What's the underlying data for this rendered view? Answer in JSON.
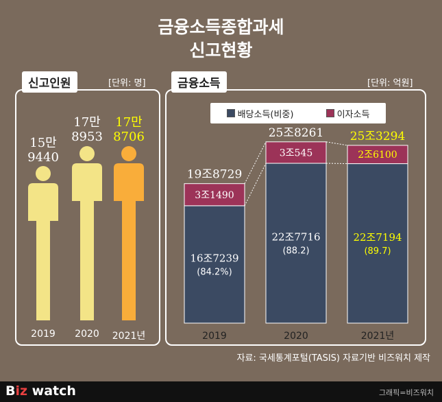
{
  "title": {
    "line1": "금융소득종합과세",
    "line2": "신고현황"
  },
  "left_panel": {
    "tag": "신고인원",
    "unit": "[단위: 명]",
    "people": [
      {
        "year": "2019",
        "value_line1": "15만",
        "value_line2": "9440",
        "color": "#f3e487",
        "text_color": "#ffffff"
      },
      {
        "year": "2020",
        "value_line1": "17만",
        "value_line2": "8953",
        "color": "#f3e487",
        "text_color": "#ffffff"
      },
      {
        "year": "2021년",
        "value_line1": "17만",
        "value_line2": "8706",
        "color": "#f9ad3a",
        "text_color": "#ffff00"
      }
    ]
  },
  "right_panel": {
    "tag": "금융소득",
    "unit": "[단위: 억원]",
    "legend": {
      "dividend": "배당소득(비중)",
      "interest": "이자소득"
    }
  },
  "colors": {
    "dividend": "#3b4a62",
    "interest": "#9c3358",
    "highlight": "#ffff00",
    "background": "#7a6a5c"
  },
  "chart_data": {
    "type": "bar",
    "stacked": true,
    "categories": [
      "2019",
      "2020",
      "2021년"
    ],
    "series": [
      {
        "name": "배당소득(비중)",
        "values": [
          167239,
          227716,
          227194
        ],
        "labels": [
          "16조7239",
          "22조7716",
          "22조7194"
        ],
        "shares": [
          "(84.2%)",
          "(88.2)",
          "(89.7)"
        ]
      },
      {
        "name": "이자소득",
        "values": [
          31490,
          30545,
          26100
        ],
        "labels": [
          "3조1490",
          "3조545",
          "2조6100"
        ]
      }
    ],
    "totals": [
      198729,
      258261,
      253294
    ],
    "total_labels": [
      "19조8729",
      "25조8261",
      "25조3294"
    ],
    "ylim": [
      0,
      260000
    ],
    "highlight_last": true
  },
  "caption": "자료: 국세통계포털(TASIS) 자료기반 비즈워치 제작",
  "footer": {
    "brand_b": "B",
    "brand_iz": "iz",
    "brand_watch": " watch",
    "credit": "그래픽=비즈워치"
  }
}
